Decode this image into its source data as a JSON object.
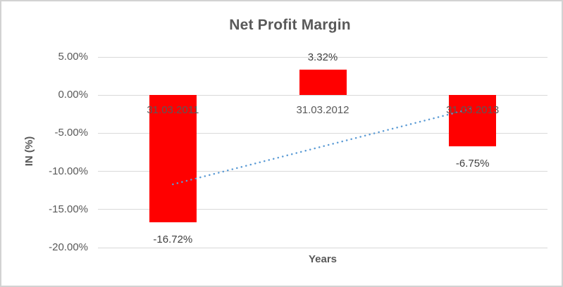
{
  "chart_data": {
    "type": "bar",
    "title": "Net Profit Margin",
    "xlabel": "Years",
    "ylabel": "IN (%)",
    "categories": [
      "31.03.2011",
      "31.03.2012",
      "31.03.2013"
    ],
    "values": [
      -16.72,
      3.32,
      -6.75
    ],
    "data_labels": [
      "-16.72%",
      "3.32%",
      "-6.75%"
    ],
    "y_ticks": [
      {
        "value": 5,
        "label": "5.00%"
      },
      {
        "value": 0,
        "label": "0.00%"
      },
      {
        "value": -5,
        "label": "-5.00%"
      },
      {
        "value": -10,
        "label": "-10.00%"
      },
      {
        "value": -15,
        "label": "-15.00%"
      },
      {
        "value": -20,
        "label": "-20.00%"
      }
    ],
    "ylim": [
      -20,
      5
    ],
    "grid": true,
    "legend": "none",
    "trendline": {
      "type": "linear",
      "style": "dotted",
      "start_value": -11.7,
      "end_value": -1.75
    },
    "colors": {
      "bar": "#FF0000",
      "trendline": "#5B9BD5",
      "gridline": "#D9D9D9",
      "axis_text": "#595959",
      "data_label_text": "#404040",
      "title_text": "#595959"
    }
  }
}
